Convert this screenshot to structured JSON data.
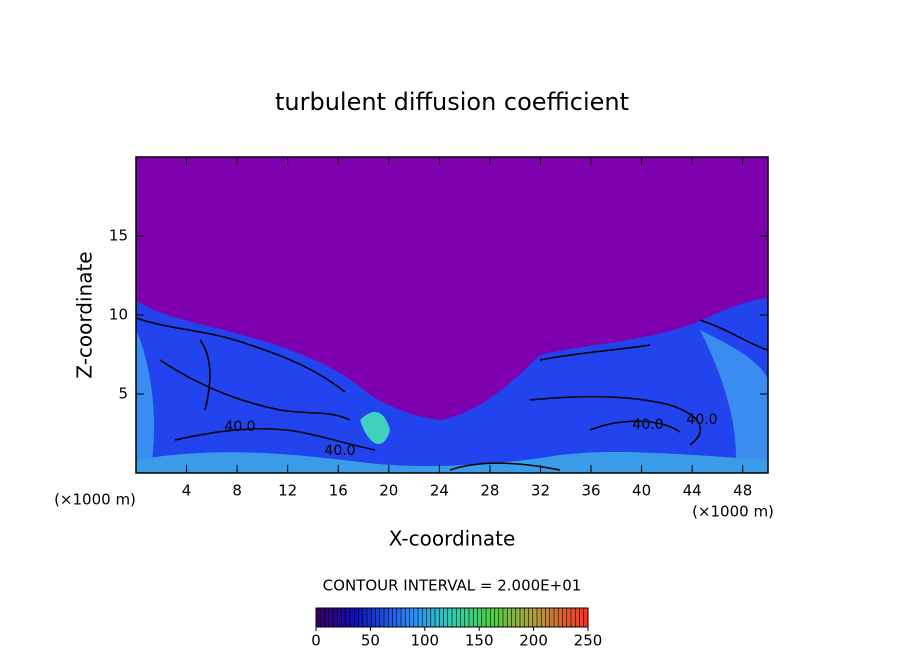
{
  "chart_data": {
    "type": "contour",
    "title": "turbulent diffusion coefficient",
    "x_label": "X-coordinate",
    "y_label": "Z-coordinate",
    "x_unit": "(×1000 m)",
    "y_unit": "(×1000 m)",
    "xlim": [
      0,
      50
    ],
    "xticks": [
      4,
      8,
      12,
      16,
      20,
      24,
      28,
      32,
      36,
      40,
      44,
      48
    ],
    "ylim": [
      0,
      20
    ],
    "yticks": [
      5,
      10,
      15
    ],
    "contour_labels": [
      {
        "value": 40,
        "label": "40.0"
      },
      {
        "value": 40,
        "label": "40.0"
      },
      {
        "value": 40,
        "label": "40.0"
      },
      {
        "value": 40,
        "label": "40.0"
      }
    ],
    "contour_interval": "CONTOUR INTERVAL = 2.000E+01",
    "colorbar": {
      "lim": [
        0,
        250
      ],
      "ticks": [
        0,
        50,
        100,
        150,
        200,
        250
      ]
    }
  }
}
